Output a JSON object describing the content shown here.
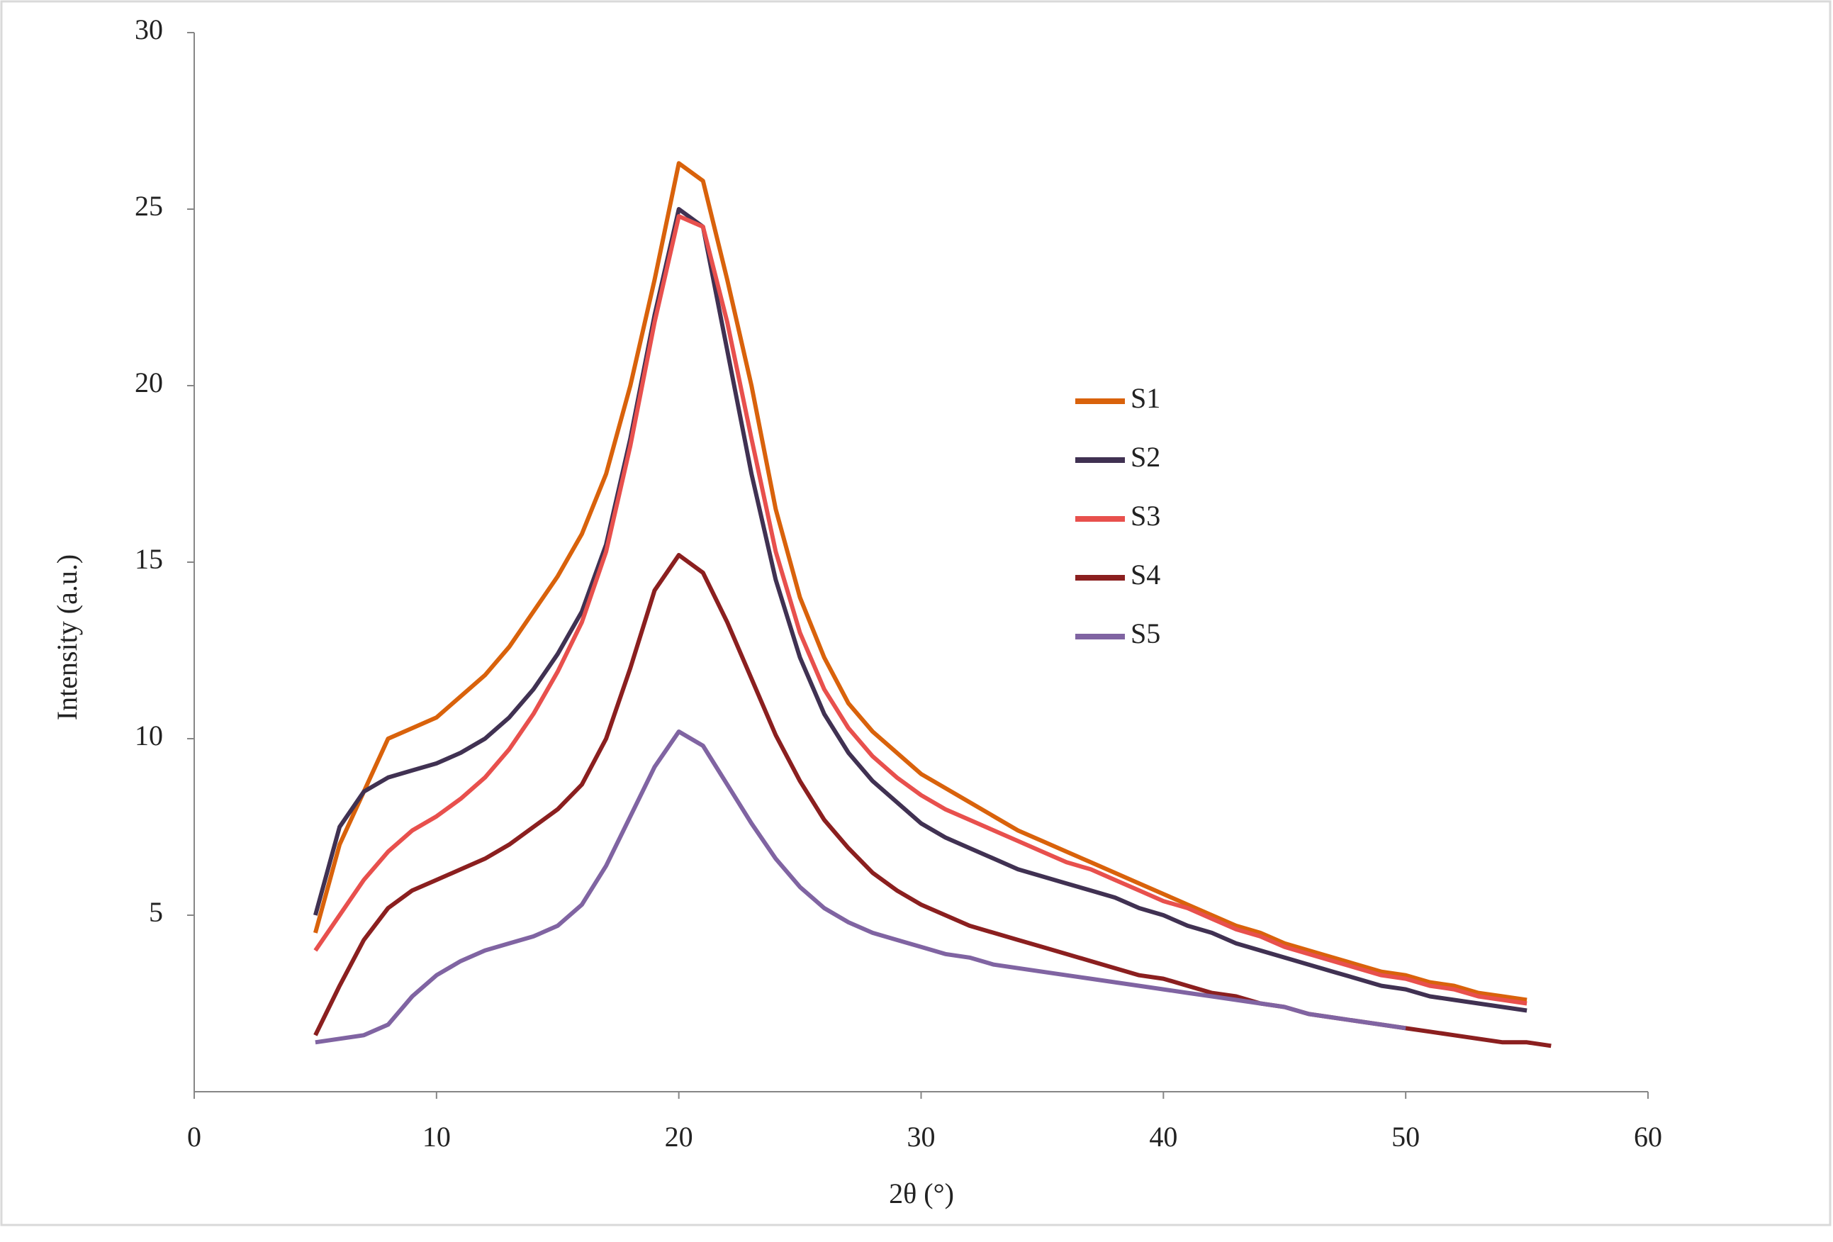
{
  "chart_data": {
    "type": "line",
    "x_label": "2θ (°)",
    "y_label": "Intensity (a.u.)",
    "xlim": [
      0,
      60
    ],
    "xticks": [
      0,
      10,
      20,
      30,
      40,
      50,
      60
    ],
    "ylim": [
      0,
      30
    ],
    "yticks": [
      5,
      10,
      15,
      20,
      25,
      30
    ],
    "grid": false,
    "series": [
      {
        "name": "S1",
        "color": "#d9620b",
        "x": [
          5,
          6,
          7,
          8,
          9,
          10,
          11,
          12,
          13,
          14,
          15,
          16,
          17,
          18,
          19,
          20,
          21,
          22,
          23,
          24,
          25,
          26,
          27,
          28,
          29,
          30,
          31,
          32,
          33,
          34,
          35,
          36,
          37,
          38,
          39,
          40,
          41,
          42,
          43,
          44,
          45,
          46,
          47,
          48,
          49,
          50,
          51,
          52,
          53,
          54,
          55
        ],
        "values": [
          4.5,
          7,
          8.5,
          10,
          10.3,
          10.6,
          11.2,
          11.8,
          12.6,
          13.6,
          14.6,
          15.8,
          17.5,
          20,
          23,
          26.3,
          25.8,
          23,
          20,
          16.5,
          14,
          12.3,
          11,
          10.2,
          9.6,
          9,
          8.6,
          8.2,
          7.8,
          7.4,
          7.1,
          6.8,
          6.5,
          6.2,
          5.9,
          5.6,
          5.3,
          5,
          4.7,
          4.5,
          4.2,
          4,
          3.8,
          3.6,
          3.4,
          3.3,
          3.1,
          3,
          2.8,
          2.7,
          2.6
        ]
      },
      {
        "name": "S2",
        "color": "#403152",
        "x": [
          5,
          6,
          7,
          8,
          9,
          10,
          11,
          12,
          13,
          14,
          15,
          16,
          17,
          18,
          19,
          20,
          21,
          22,
          23,
          24,
          25,
          26,
          27,
          28,
          29,
          30,
          31,
          32,
          33,
          34,
          35,
          36,
          37,
          38,
          39,
          40,
          41,
          42,
          43,
          44,
          45,
          46,
          47,
          48,
          49,
          50,
          51,
          52,
          53,
          54,
          55
        ],
        "values": [
          5,
          7.5,
          8.5,
          8.9,
          9.1,
          9.3,
          9.6,
          10,
          10.6,
          11.4,
          12.4,
          13.6,
          15.5,
          18.5,
          22,
          25,
          24.5,
          21,
          17.5,
          14.5,
          12.3,
          10.7,
          9.6,
          8.8,
          8.2,
          7.6,
          7.2,
          6.9,
          6.6,
          6.3,
          6.1,
          5.9,
          5.7,
          5.5,
          5.2,
          5,
          4.7,
          4.5,
          4.2,
          4,
          3.8,
          3.6,
          3.4,
          3.2,
          3,
          2.9,
          2.7,
          2.6,
          2.5,
          2.4,
          2.3
        ]
      },
      {
        "name": "S3",
        "color": "#e8504d",
        "x": [
          5,
          6,
          7,
          8,
          9,
          10,
          11,
          12,
          13,
          14,
          15,
          16,
          17,
          18,
          19,
          20,
          21,
          22,
          23,
          24,
          25,
          26,
          27,
          28,
          29,
          30,
          31,
          32,
          33,
          34,
          35,
          36,
          37,
          38,
          39,
          40,
          41,
          42,
          43,
          44,
          45,
          46,
          47,
          48,
          49,
          50,
          51,
          52,
          53,
          54,
          55
        ],
        "values": [
          4,
          5,
          6,
          6.8,
          7.4,
          7.8,
          8.3,
          8.9,
          9.7,
          10.7,
          11.9,
          13.3,
          15.3,
          18.3,
          21.8,
          24.8,
          24.5,
          21.8,
          18.5,
          15.3,
          13,
          11.4,
          10.3,
          9.5,
          8.9,
          8.4,
          8,
          7.7,
          7.4,
          7.1,
          6.8,
          6.5,
          6.3,
          6,
          5.7,
          5.4,
          5.2,
          4.9,
          4.6,
          4.4,
          4.1,
          3.9,
          3.7,
          3.5,
          3.3,
          3.2,
          3,
          2.9,
          2.7,
          2.6,
          2.5
        ]
      },
      {
        "name": "S4",
        "color": "#8b1f1f",
        "x": [
          5,
          6,
          7,
          8,
          9,
          10,
          11,
          12,
          13,
          14,
          15,
          16,
          17,
          18,
          19,
          20,
          21,
          22,
          23,
          24,
          25,
          26,
          27,
          28,
          29,
          30,
          31,
          32,
          33,
          34,
          35,
          36,
          37,
          38,
          39,
          40,
          41,
          42,
          43,
          44,
          45,
          46,
          47,
          48,
          49,
          50,
          51,
          52,
          53,
          54,
          55,
          56
        ],
        "values": [
          1.6,
          3,
          4.3,
          5.2,
          5.7,
          6,
          6.3,
          6.6,
          7,
          7.5,
          8,
          8.7,
          10,
          12,
          14.2,
          15.2,
          14.7,
          13.3,
          11.7,
          10.1,
          8.8,
          7.7,
          6.9,
          6.2,
          5.7,
          5.3,
          5,
          4.7,
          4.5,
          4.3,
          4.1,
          3.9,
          3.7,
          3.5,
          3.3,
          3.2,
          3,
          2.8,
          2.7,
          2.5,
          2.4,
          2.2,
          2.1,
          2,
          1.9,
          1.8,
          1.7,
          1.6,
          1.5,
          1.4,
          1.4,
          1.3
        ]
      },
      {
        "name": "S5",
        "color": "#8064a2",
        "x": [
          5,
          6,
          7,
          8,
          9,
          10,
          11,
          12,
          13,
          14,
          15,
          16,
          17,
          18,
          19,
          20,
          21,
          22,
          23,
          24,
          25,
          26,
          27,
          28,
          29,
          30,
          31,
          32,
          33,
          34,
          35,
          36,
          37,
          38,
          39,
          40,
          41,
          42,
          43,
          44,
          45,
          46,
          47,
          48,
          49,
          50
        ],
        "values": [
          1.4,
          1.5,
          1.6,
          1.9,
          2.7,
          3.3,
          3.7,
          4,
          4.2,
          4.4,
          4.7,
          5.3,
          6.4,
          7.8,
          9.2,
          10.2,
          9.8,
          8.7,
          7.6,
          6.6,
          5.8,
          5.2,
          4.8,
          4.5,
          4.3,
          4.1,
          3.9,
          3.8,
          3.6,
          3.5,
          3.4,
          3.3,
          3.2,
          3.1,
          3,
          2.9,
          2.8,
          2.7,
          2.6,
          2.5,
          2.4,
          2.2,
          2.1,
          2,
          1.9,
          1.8
        ]
      }
    ]
  }
}
